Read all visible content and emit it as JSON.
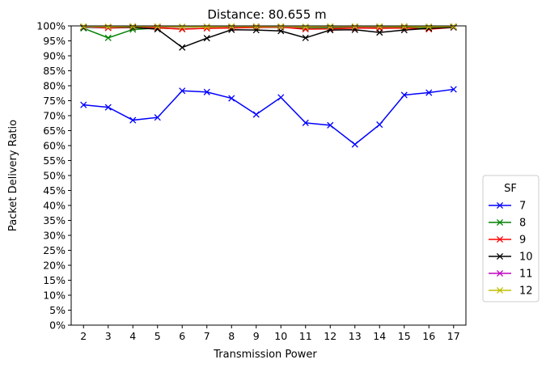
{
  "chart_data": {
    "type": "line",
    "title": "Distance: 80.655 m",
    "xlabel": "Transmission Power",
    "ylabel": "Packet Delivery Ratio",
    "x": [
      2,
      3,
      4,
      5,
      6,
      7,
      8,
      9,
      10,
      11,
      12,
      13,
      14,
      15,
      16,
      17
    ],
    "xlim": [
      1.5,
      17.5
    ],
    "ylim": [
      0,
      100
    ],
    "ytick_step": 5,
    "ytick_format": "percent",
    "marker": "x",
    "grid": false,
    "legend": {
      "title": "SF",
      "placement": "outside-right"
    },
    "series": [
      {
        "name": "7",
        "color": "#0000ff",
        "values": [
          73.6,
          72.8,
          68.5,
          69.4,
          78.3,
          77.9,
          75.8,
          70.4,
          76.1,
          67.6,
          66.8,
          60.4,
          67.0,
          76.9,
          77.7,
          78.8
        ]
      },
      {
        "name": "8",
        "color": "#008000",
        "values": [
          99.2,
          96.0,
          98.8,
          99.3,
          99.0,
          99.2,
          99.4,
          99.5,
          99.5,
          99.3,
          99.4,
          99.5,
          99.4,
          99.5,
          99.4,
          99.6
        ]
      },
      {
        "name": "9",
        "color": "#ff0000",
        "values": [
          99.6,
          99.3,
          99.5,
          99.4,
          98.9,
          99.2,
          99.3,
          99.5,
          99.6,
          98.9,
          99.0,
          99.3,
          99.2,
          99.3,
          98.9,
          99.5
        ]
      },
      {
        "name": "10",
        "color": "#000000",
        "values": [
          99.5,
          99.6,
          99.5,
          98.9,
          92.8,
          95.9,
          98.7,
          98.6,
          98.3,
          96.0,
          98.6,
          98.7,
          97.8,
          98.6,
          99.2,
          99.5
        ]
      },
      {
        "name": "11",
        "color": "#bf00bf",
        "values": [
          99.7,
          99.6,
          99.8,
          99.7,
          99.6,
          99.7,
          99.7,
          99.8,
          99.7,
          99.6,
          99.7,
          99.7,
          99.7,
          99.8,
          99.7,
          99.8
        ]
      },
      {
        "name": "12",
        "color": "#bfbf00",
        "values": [
          99.8,
          99.7,
          99.8,
          99.8,
          99.7,
          99.7,
          99.8,
          99.8,
          99.8,
          99.7,
          99.8,
          99.8,
          99.8,
          99.8,
          99.7,
          99.8
        ]
      }
    ]
  }
}
